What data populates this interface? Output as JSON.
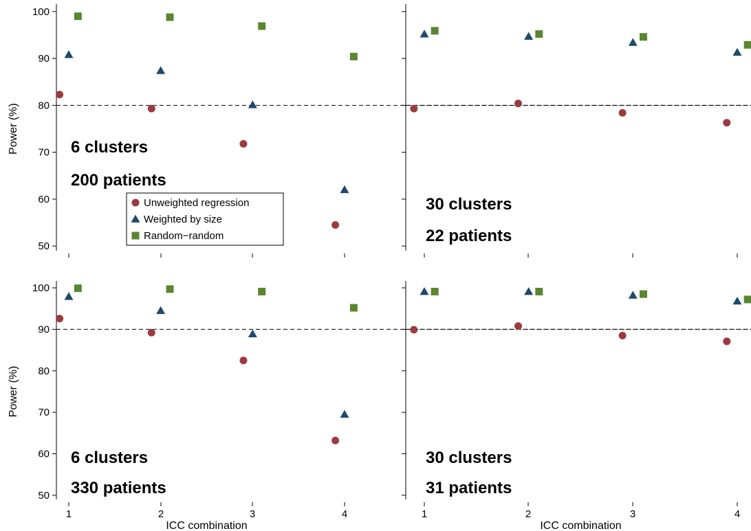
{
  "colors": {
    "unweighted": "#9b3a3f",
    "weighted": "#1e4a6e",
    "random": "#5a8630",
    "axis": "#000000"
  },
  "legend": {
    "items": [
      {
        "label": "Unweighted regression",
        "marker": "circle",
        "color": "#9b3a3f"
      },
      {
        "label": "Weighted by size",
        "marker": "triangle",
        "color": "#1e4a6e"
      },
      {
        "label": "Random−random",
        "marker": "square",
        "color": "#5a8630"
      }
    ]
  },
  "chart_data": [
    {
      "type": "scatter",
      "panel": "top-left",
      "ylabel": "Power (%)",
      "xlabel": "",
      "xticks": [
        "1",
        "2",
        "3",
        "4"
      ],
      "yticks": [
        50,
        60,
        70,
        80,
        90,
        100
      ],
      "ylim": [
        49,
        101
      ],
      "xlim": [
        0.9,
        4.1
      ],
      "reference_line": 80,
      "annotations": [
        "6 clusters",
        "200 patients"
      ],
      "legend_visible": true,
      "series": [
        {
          "name": "Unweighted regression",
          "marker": "circle",
          "x": [
            0.9,
            1.9,
            2.9,
            3.9
          ],
          "y": [
            82.3,
            79.3,
            71.8,
            54.5
          ]
        },
        {
          "name": "Weighted by size",
          "marker": "triangle",
          "x": [
            1.0,
            2.0,
            3.0,
            4.0
          ],
          "y": [
            90.8,
            87.4,
            80.1,
            62.0
          ]
        },
        {
          "name": "Random−random",
          "marker": "square",
          "x": [
            1.1,
            2.1,
            3.1,
            4.1
          ],
          "y": [
            99.0,
            98.8,
            96.9,
            90.4
          ]
        }
      ]
    },
    {
      "type": "scatter",
      "panel": "top-right",
      "ylabel": "",
      "xlabel": "",
      "xticks": [
        "1",
        "2",
        "3",
        "4"
      ],
      "yticks": [
        50,
        60,
        70,
        80,
        90,
        100
      ],
      "ylim": [
        49,
        101
      ],
      "xlim": [
        0.9,
        4.1
      ],
      "reference_line": 80,
      "annotations": [
        "30 clusters",
        "22 patients"
      ],
      "legend_visible": false,
      "series": [
        {
          "name": "Unweighted regression",
          "marker": "circle",
          "x": [
            0.9,
            1.9,
            2.9,
            3.9
          ],
          "y": [
            79.3,
            80.4,
            78.4,
            76.3
          ]
        },
        {
          "name": "Weighted by size",
          "marker": "triangle",
          "x": [
            1.0,
            2.0,
            3.0,
            4.0
          ],
          "y": [
            95.2,
            94.7,
            93.4,
            91.3
          ]
        },
        {
          "name": "Random−random",
          "marker": "square",
          "x": [
            1.1,
            2.1,
            3.1,
            4.1
          ],
          "y": [
            95.9,
            95.2,
            94.6,
            92.9
          ]
        }
      ]
    },
    {
      "type": "scatter",
      "panel": "bottom-left",
      "ylabel": "Power (%)",
      "xlabel": "ICC combination",
      "xticks": [
        "1",
        "2",
        "3",
        "4"
      ],
      "yticks": [
        50,
        60,
        70,
        80,
        90,
        100
      ],
      "ylim": [
        49,
        101
      ],
      "xlim": [
        0.9,
        4.1
      ],
      "reference_line": 90,
      "annotations": [
        "6 clusters",
        "330 patients"
      ],
      "legend_visible": false,
      "series": [
        {
          "name": "Unweighted regression",
          "marker": "circle",
          "x": [
            0.9,
            1.9,
            2.9,
            3.9
          ],
          "y": [
            92.6,
            89.2,
            82.5,
            63.2
          ]
        },
        {
          "name": "Weighted by size",
          "marker": "triangle",
          "x": [
            1.0,
            2.0,
            3.0,
            4.0
          ],
          "y": [
            97.9,
            94.5,
            88.9,
            69.5
          ]
        },
        {
          "name": "Random−random",
          "marker": "square",
          "x": [
            1.1,
            2.1,
            3.1,
            4.1
          ],
          "y": [
            99.9,
            99.7,
            99.1,
            95.2
          ]
        }
      ]
    },
    {
      "type": "scatter",
      "panel": "bottom-right",
      "ylabel": "",
      "xlabel": "ICC combination",
      "xticks": [
        "1",
        "2",
        "3",
        "4"
      ],
      "yticks": [
        50,
        60,
        70,
        80,
        90,
        100
      ],
      "ylim": [
        49,
        101
      ],
      "xlim": [
        0.9,
        4.1
      ],
      "reference_line": 90,
      "annotations": [
        "30 clusters",
        "31 patients"
      ],
      "legend_visible": false,
      "series": [
        {
          "name": "Unweighted regression",
          "marker": "circle",
          "x": [
            0.9,
            1.9,
            2.9,
            3.9
          ],
          "y": [
            89.9,
            90.8,
            88.5,
            87.1
          ]
        },
        {
          "name": "Weighted by size",
          "marker": "triangle",
          "x": [
            1.0,
            2.0,
            3.0,
            4.0
          ],
          "y": [
            99.1,
            99.1,
            98.2,
            96.8
          ]
        },
        {
          "name": "Random−random",
          "marker": "square",
          "x": [
            1.1,
            2.1,
            3.1,
            4.1
          ],
          "y": [
            99.1,
            99.1,
            98.5,
            97.2
          ]
        }
      ]
    }
  ]
}
